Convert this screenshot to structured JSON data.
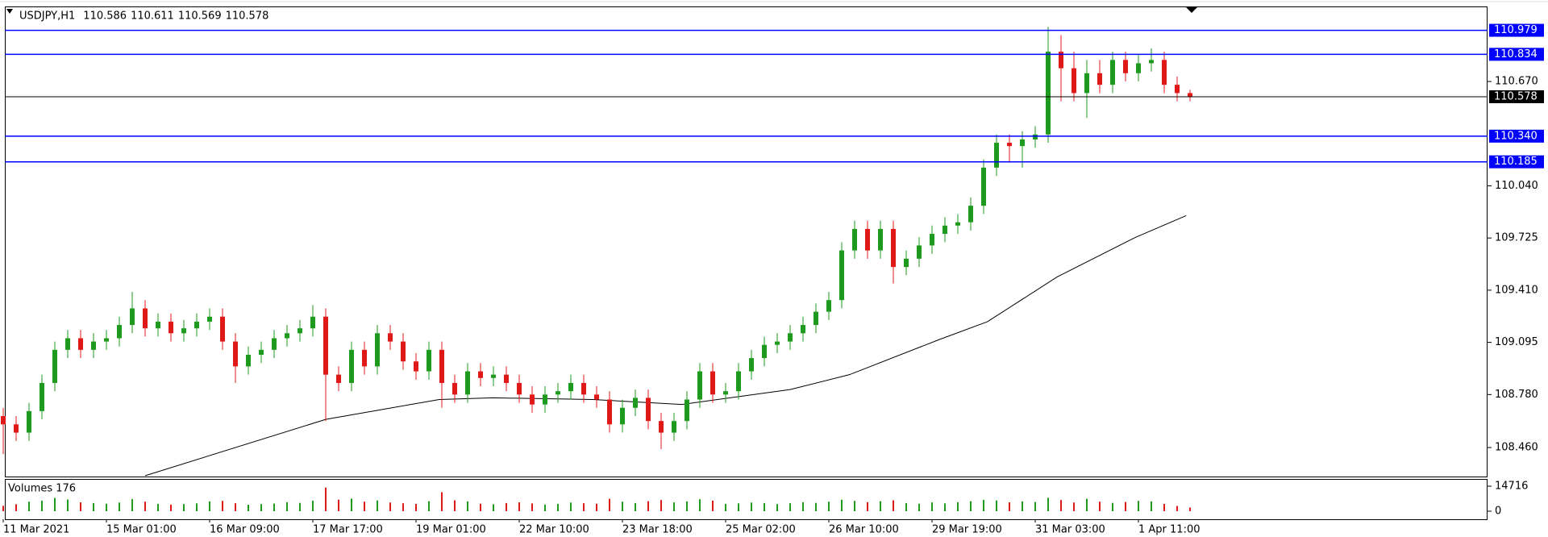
{
  "chart_data": {
    "type": "candlestick",
    "symbol": "USDJPY,H1",
    "header_prices": [
      110.586,
      110.611,
      110.569,
      110.578
    ],
    "volume_label": "Volumes 176",
    "categories": [
      "11 Mar 2021",
      null,
      null,
      null,
      null,
      null,
      null,
      null,
      "15 Mar 01:00",
      null,
      null,
      null,
      null,
      null,
      null,
      null,
      "16 Mar 09:00",
      null,
      null,
      null,
      null,
      null,
      null,
      null,
      "17 Mar 17:00",
      null,
      null,
      null,
      null,
      null,
      null,
      null,
      "19 Mar 01:00",
      null,
      null,
      null,
      null,
      null,
      null,
      null,
      "22 Mar 10:00",
      null,
      null,
      null,
      null,
      null,
      null,
      null,
      "23 Mar 18:00",
      null,
      null,
      null,
      null,
      null,
      null,
      null,
      "25 Mar 02:00",
      null,
      null,
      null,
      null,
      null,
      null,
      null,
      "26 Mar 10:00",
      null,
      null,
      null,
      null,
      null,
      null,
      null,
      "29 Mar 19:00",
      null,
      null,
      null,
      null,
      null,
      null,
      null,
      "31 Mar 03:00",
      null,
      null,
      null,
      null,
      null,
      null,
      null,
      "1 Apr 11:00",
      null,
      null,
      null,
      null
    ],
    "open": [
      108.65,
      108.6,
      108.55,
      108.68,
      108.85,
      109.05,
      109.12,
      109.05,
      109.1,
      109.12,
      109.2,
      109.3,
      109.18,
      109.22,
      109.15,
      109.18,
      109.22,
      109.25,
      109.1,
      108.95,
      109.02,
      109.05,
      109.12,
      109.15,
      109.18,
      109.25,
      108.9,
      108.85,
      109.05,
      108.95,
      109.15,
      109.1,
      108.98,
      108.92,
      109.05,
      108.85,
      108.78,
      108.92,
      108.88,
      108.9,
      108.85,
      108.78,
      108.72,
      108.78,
      108.8,
      108.85,
      108.78,
      108.75,
      108.6,
      108.7,
      108.76,
      108.62,
      108.55,
      108.62,
      108.75,
      108.92,
      108.78,
      108.8,
      108.92,
      109.0,
      109.08,
      109.1,
      109.15,
      109.2,
      109.28,
      109.35,
      109.65,
      109.78,
      109.65,
      109.78,
      109.55,
      109.6,
      109.68,
      109.75,
      109.8,
      109.82,
      109.92,
      110.15,
      110.3,
      110.28,
      110.32,
      110.35,
      110.85,
      110.75,
      110.6,
      110.72,
      110.65,
      110.8,
      110.72,
      110.78,
      110.8,
      110.65,
      110.6
    ],
    "high": [
      108.7,
      108.65,
      108.73,
      108.9,
      109.1,
      109.17,
      109.17,
      109.15,
      109.17,
      109.25,
      109.4,
      109.35,
      109.27,
      109.27,
      109.23,
      109.27,
      109.3,
      109.3,
      109.15,
      109.07,
      109.1,
      109.17,
      109.2,
      109.23,
      109.32,
      109.3,
      108.95,
      109.1,
      109.1,
      109.2,
      109.2,
      109.15,
      109.03,
      109.1,
      109.1,
      108.9,
      108.97,
      108.97,
      108.95,
      108.95,
      108.9,
      108.83,
      108.83,
      108.85,
      108.9,
      108.9,
      108.83,
      108.8,
      108.75,
      108.81,
      108.81,
      108.67,
      108.67,
      108.8,
      108.97,
      108.97,
      108.85,
      108.97,
      109.05,
      109.13,
      109.15,
      109.2,
      109.25,
      109.33,
      109.4,
      109.7,
      109.83,
      109.83,
      109.83,
      109.83,
      109.65,
      109.73,
      109.8,
      109.85,
      109.87,
      109.97,
      110.2,
      110.35,
      110.35,
      110.37,
      110.4,
      111.0,
      110.95,
      110.85,
      110.8,
      110.8,
      110.85,
      110.85,
      110.83,
      110.87,
      110.85,
      110.7,
      110.62
    ],
    "low": [
      108.42,
      108.5,
      108.5,
      108.63,
      108.8,
      109.0,
      109.0,
      109.0,
      109.05,
      109.07,
      109.15,
      109.13,
      109.13,
      109.1,
      109.1,
      109.13,
      109.17,
      109.05,
      108.85,
      108.9,
      108.97,
      109.0,
      109.07,
      109.1,
      109.13,
      108.62,
      108.8,
      108.8,
      108.9,
      108.9,
      109.05,
      108.93,
      108.87,
      108.87,
      108.7,
      108.73,
      108.73,
      108.83,
      108.83,
      108.8,
      108.73,
      108.67,
      108.67,
      108.73,
      108.75,
      108.73,
      108.7,
      108.55,
      108.55,
      108.65,
      108.57,
      108.45,
      108.5,
      108.57,
      108.7,
      108.73,
      108.73,
      108.75,
      108.87,
      108.95,
      109.03,
      109.05,
      109.1,
      109.15,
      109.23,
      109.3,
      109.6,
      109.6,
      109.6,
      109.45,
      109.5,
      109.55,
      109.63,
      109.7,
      109.75,
      109.77,
      109.87,
      110.1,
      110.18,
      110.15,
      110.27,
      110.3,
      110.55,
      110.55,
      110.45,
      110.6,
      110.6,
      110.67,
      110.67,
      110.73,
      110.6,
      110.55,
      110.55
    ],
    "close": [
      108.6,
      108.55,
      108.68,
      108.85,
      109.05,
      109.12,
      109.05,
      109.1,
      109.12,
      109.2,
      109.3,
      109.18,
      109.22,
      109.15,
      109.18,
      109.22,
      109.25,
      109.1,
      108.95,
      109.02,
      109.05,
      109.12,
      109.15,
      109.18,
      109.25,
      108.9,
      108.85,
      109.05,
      108.95,
      109.15,
      109.1,
      108.98,
      108.92,
      109.05,
      108.85,
      108.78,
      108.92,
      108.88,
      108.9,
      108.85,
      108.78,
      108.72,
      108.78,
      108.8,
      108.85,
      108.78,
      108.75,
      108.6,
      108.7,
      108.76,
      108.62,
      108.55,
      108.62,
      108.75,
      108.92,
      108.78,
      108.8,
      108.92,
      109.0,
      109.08,
      109.1,
      109.15,
      109.2,
      109.28,
      109.35,
      109.65,
      109.78,
      109.65,
      109.78,
      109.55,
      109.6,
      109.68,
      109.75,
      109.8,
      109.82,
      109.92,
      110.15,
      110.3,
      110.28,
      110.32,
      110.35,
      110.85,
      110.75,
      110.6,
      110.72,
      110.65,
      110.8,
      110.72,
      110.78,
      110.8,
      110.65,
      110.6,
      110.578
    ],
    "volumes": [
      3200,
      4100,
      5600,
      6200,
      7800,
      6900,
      5200,
      4800,
      4400,
      5100,
      7200,
      5600,
      4300,
      3900,
      4200,
      4600,
      5800,
      6100,
      4700,
      3800,
      4200,
      4500,
      5300,
      4900,
      6200,
      13900,
      6800,
      7400,
      5600,
      6300,
      5100,
      4700,
      4300,
      5900,
      11200,
      6400,
      5800,
      4400,
      4100,
      4800,
      5200,
      4600,
      3900,
      4300,
      5100,
      4700,
      4400,
      7300,
      5600,
      4800,
      5900,
      6600,
      5200,
      5800,
      7100,
      6200,
      4300,
      4600,
      5100,
      4800,
      4200,
      4700,
      5300,
      4900,
      5600,
      6800,
      6100,
      5300,
      5900,
      6400,
      4800,
      4400,
      5200,
      4600,
      5300,
      5900,
      6700,
      6300,
      5200,
      5800,
      5400,
      7900,
      6600,
      5100,
      7300,
      5600,
      4900,
      5400,
      6100,
      5800,
      4300,
      3100,
      2200
    ],
    "up_color": "#1e9a1e",
    "down_color": "#e01818",
    "ylim": [
      108.285,
      111.123
    ],
    "yticks": [
      {
        "value": 110.67,
        "label": "110.670"
      },
      {
        "value": 110.04,
        "label": "110.040"
      },
      109.725,
      {
        "value": 109.41,
        "label": "109.410"
      },
      109.095,
      {
        "value": 108.78,
        "label": "108.780"
      },
      {
        "value": 108.46,
        "label": "108.460"
      }
    ],
    "levels": [
      {
        "price": 110.979,
        "color": "#0000ff"
      },
      {
        "price": 110.834,
        "color": "#0000ff"
      },
      {
        "price": 110.578,
        "color": "#000000"
      },
      {
        "price": {
          "value": 110.34,
          "label": "110.340"
        },
        "color": "#0000ff"
      },
      {
        "price": 110.185,
        "color": "#0000ff"
      }
    ],
    "ma": {
      "x": [
        11,
        25,
        33.8,
        38,
        45.7,
        52.6,
        61,
        65.6,
        72.5,
        76.3,
        81.7,
        87.8,
        91.7
      ],
      "values": [
        108.29,
        108.63,
        108.75,
        108.76,
        108.75,
        108.72,
        108.81,
        108.9,
        109.11,
        109.22,
        109.49,
        109.73,
        109.86
      ],
      "color": "#000000"
    },
    "volume_ylim": [
      -4750,
      19000
    ],
    "volume_yticks": [
      14716,
      0
    ]
  }
}
